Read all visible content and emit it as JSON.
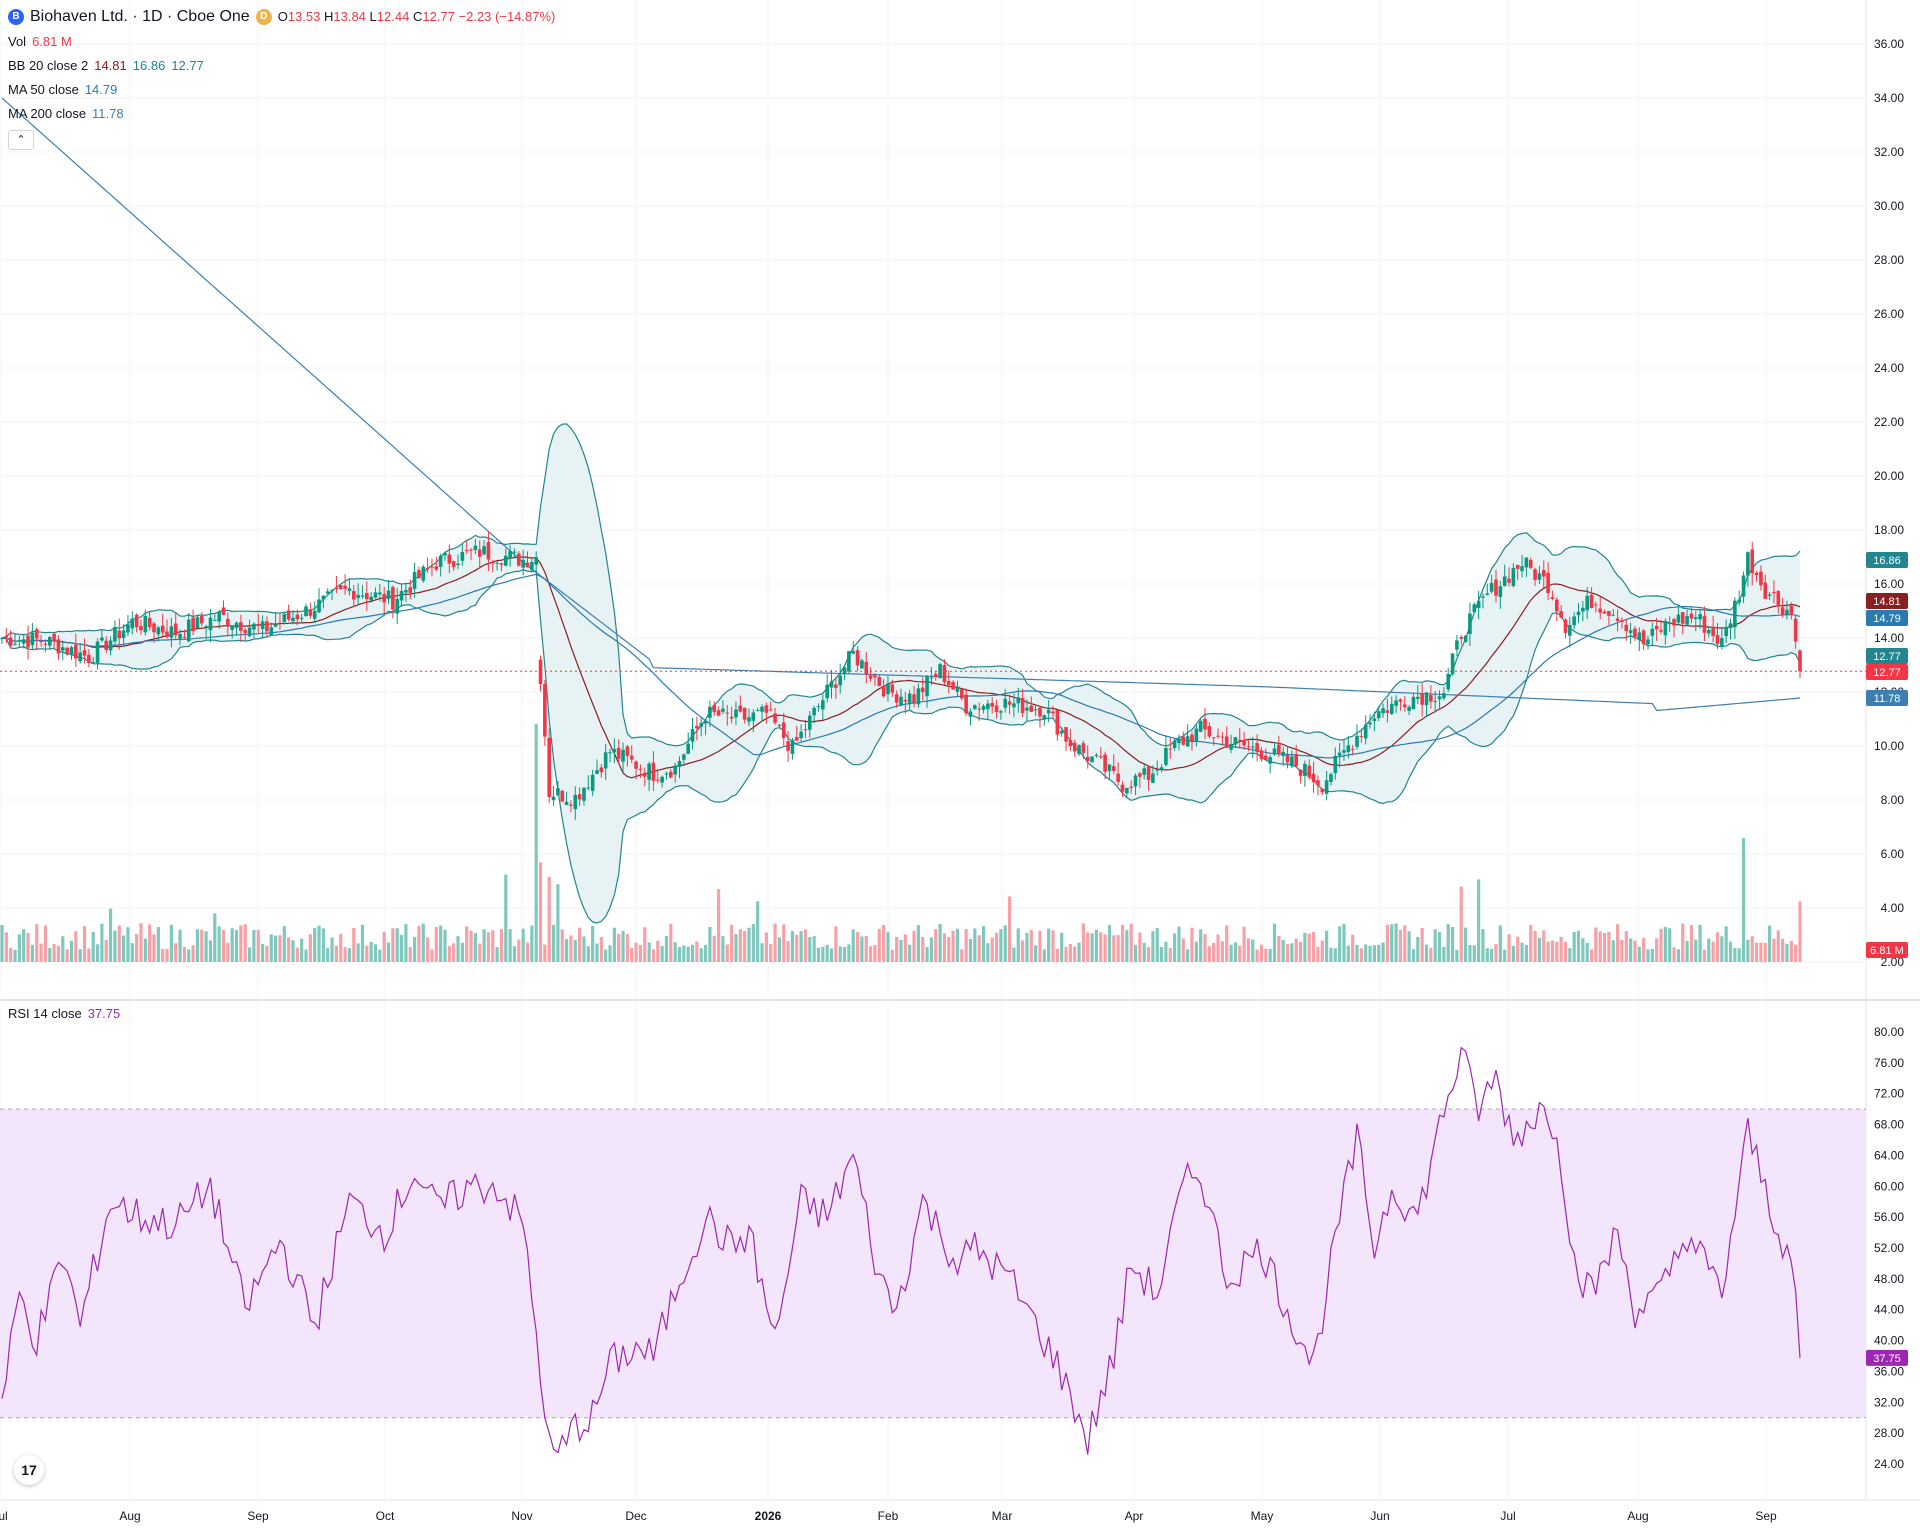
{
  "header": {
    "symbol": "Biohaven Ltd. · 1D · Cboe One",
    "logo_icon": "B",
    "badge_icon": "D",
    "open_label": "O",
    "open": "13.53",
    "high_label": "H",
    "high": "13.84",
    "low_label": "L",
    "low": "12.44",
    "close_label": "C",
    "close": "12.77",
    "change": "−2.23 (−14.87%)"
  },
  "indicators": {
    "vol": {
      "label": "Vol",
      "value": "6.81 M"
    },
    "bb": {
      "label": "BB 20 close 2",
      "basis": "14.81",
      "upper": "16.86",
      "lower": "12.77"
    },
    "ma50": {
      "label": "MA 50 close",
      "value": "14.79"
    },
    "ma200": {
      "label": "MA 200 close",
      "value": "11.78"
    },
    "rsi": {
      "label": "RSI 14 close",
      "value": "37.75"
    },
    "collapse_glyph": "⌃"
  },
  "colors": {
    "up": "#089981",
    "down": "#f23645",
    "up_vol": "#7fc8bd",
    "down_vol": "#f7a1a6",
    "bb": "#22858f",
    "bb_basis": "#8b1e20",
    "bb_fill": "#e6f2f3",
    "ma200": "#3d7fb0",
    "ma50": "#2a7bb0",
    "rsi_line": "#9c27b0",
    "rsi_band": "#f3e5fb",
    "grid": "#f0f3fa"
  },
  "chart_data": {
    "type": "candlestick",
    "title": "Biohaven Ltd. · 1D · Cboe One",
    "price_axis": {
      "min": 0,
      "max": 37,
      "ticks": [
        "2.00",
        "4.00",
        "6.00",
        "8.00",
        "10.00",
        "12.00",
        "14.00",
        "16.00",
        "18.00",
        "20.00",
        "22.00",
        "24.00",
        "26.00",
        "28.00",
        "30.00",
        "32.00",
        "34.00",
        "36.00"
      ]
    },
    "x_axis_labels": [
      "Jul",
      "Aug",
      "Sep",
      "Oct",
      "Nov",
      "Dec",
      "2026",
      "Feb",
      "Mar",
      "Apr",
      "May",
      "Jun",
      "Jul",
      "Aug",
      "Sep"
    ],
    "price_badges": {
      "bb_upper": "16.86",
      "bb_basis": "14.81",
      "ma50": "14.79",
      "bb_lower": "12.77",
      "close": "12.77",
      "ma200": "11.78",
      "volume": "6.81 M"
    },
    "rsi_axis": {
      "min": 22,
      "max": 82,
      "ticks": [
        "24.00",
        "28.00",
        "32.00",
        "36.00",
        "40.00",
        "44.00",
        "48.00",
        "52.00",
        "56.00",
        "60.00",
        "64.00",
        "68.00",
        "72.00",
        "76.00",
        "80.00"
      ],
      "band": [
        30,
        70
      ],
      "last": "37.75"
    },
    "close_anchors": [
      [
        0,
        14.0
      ],
      [
        10,
        13.9
      ],
      [
        20,
        13.3
      ],
      [
        30,
        14.6
      ],
      [
        40,
        14.2
      ],
      [
        50,
        14.8
      ],
      [
        60,
        14.3
      ],
      [
        70,
        15.0
      ],
      [
        80,
        15.8
      ],
      [
        90,
        15.4
      ],
      [
        100,
        16.8
      ],
      [
        110,
        17.2
      ],
      [
        120,
        16.9
      ],
      [
        123,
        17.0
      ],
      [
        124,
        12.6
      ],
      [
        126,
        8.3
      ],
      [
        132,
        8.1
      ],
      [
        140,
        9.8
      ],
      [
        150,
        9.0
      ],
      [
        155,
        9.2
      ],
      [
        162,
        11.2
      ],
      [
        170,
        11.0
      ],
      [
        176,
        11.2
      ],
      [
        182,
        9.9
      ],
      [
        190,
        12.0
      ],
      [
        196,
        13.4
      ],
      [
        204,
        12.0
      ],
      [
        210,
        11.8
      ],
      [
        216,
        12.8
      ],
      [
        222,
        11.5
      ],
      [
        230,
        11.6
      ],
      [
        240,
        11.4
      ],
      [
        246,
        10.1
      ],
      [
        252,
        9.4
      ],
      [
        258,
        8.6
      ],
      [
        264,
        8.9
      ],
      [
        270,
        10.0
      ],
      [
        276,
        10.6
      ],
      [
        282,
        10.2
      ],
      [
        290,
        9.8
      ],
      [
        298,
        9.3
      ],
      [
        304,
        8.6
      ],
      [
        310,
        10.0
      ],
      [
        316,
        11.2
      ],
      [
        324,
        11.8
      ],
      [
        332,
        12.0
      ],
      [
        336,
        14.2
      ],
      [
        342,
        15.6
      ],
      [
        350,
        16.8
      ],
      [
        356,
        16.0
      ],
      [
        360,
        14.5
      ],
      [
        366,
        15.4
      ],
      [
        372,
        14.9
      ],
      [
        378,
        13.8
      ],
      [
        384,
        14.6
      ],
      [
        390,
        14.8
      ],
      [
        396,
        13.8
      ],
      [
        400,
        15.7
      ],
      [
        402,
        17.0
      ],
      [
        406,
        15.8
      ],
      [
        412,
        14.9
      ],
      [
        414,
        12.77
      ]
    ],
    "volume_spikes": [
      [
        25,
        2.2
      ],
      [
        49,
        2.0
      ],
      [
        116,
        3.6
      ],
      [
        123,
        9.8
      ],
      [
        124,
        4.1
      ],
      [
        126,
        3.5
      ],
      [
        128,
        3.2
      ],
      [
        165,
        3.0
      ],
      [
        174,
        2.5
      ],
      [
        232,
        2.7
      ],
      [
        336,
        3.1
      ],
      [
        340,
        3.4
      ],
      [
        401,
        5.1
      ],
      [
        414,
        2.5
      ]
    ],
    "rsi_anchors": [
      [
        0,
        32
      ],
      [
        4,
        46
      ],
      [
        8,
        40
      ],
      [
        14,
        51
      ],
      [
        18,
        42
      ],
      [
        25,
        58
      ],
      [
        32,
        56
      ],
      [
        40,
        55
      ],
      [
        48,
        60
      ],
      [
        56,
        44
      ],
      [
        64,
        53
      ],
      [
        72,
        42
      ],
      [
        80,
        58
      ],
      [
        88,
        54
      ],
      [
        95,
        62
      ],
      [
        100,
        57
      ],
      [
        108,
        60
      ],
      [
        114,
        60
      ],
      [
        120,
        55
      ],
      [
        124,
        36
      ],
      [
        126,
        26
      ],
      [
        128,
        25
      ],
      [
        132,
        29
      ],
      [
        136,
        30
      ],
      [
        140,
        37
      ],
      [
        146,
        39
      ],
      [
        150,
        38
      ],
      [
        156,
        48
      ],
      [
        162,
        56
      ],
      [
        168,
        52
      ],
      [
        172,
        54
      ],
      [
        178,
        40
      ],
      [
        184,
        58
      ],
      [
        190,
        56
      ],
      [
        196,
        64
      ],
      [
        202,
        48
      ],
      [
        206,
        44
      ],
      [
        212,
        58
      ],
      [
        220,
        50
      ],
      [
        224,
        52
      ],
      [
        232,
        48
      ],
      [
        238,
        42
      ],
      [
        242,
        38
      ],
      [
        246,
        33
      ],
      [
        250,
        27
      ],
      [
        256,
        38
      ],
      [
        260,
        50
      ],
      [
        266,
        46
      ],
      [
        272,
        60
      ],
      [
        276,
        62
      ],
      [
        282,
        48
      ],
      [
        290,
        52
      ],
      [
        296,
        44
      ],
      [
        302,
        37
      ],
      [
        308,
        56
      ],
      [
        312,
        66
      ],
      [
        316,
        52
      ],
      [
        320,
        60
      ],
      [
        326,
        56
      ],
      [
        332,
        70
      ],
      [
        336,
        77
      ],
      [
        340,
        70
      ],
      [
        344,
        74
      ],
      [
        348,
        66
      ],
      [
        354,
        70
      ],
      [
        358,
        68
      ],
      [
        362,
        50
      ],
      [
        366,
        46
      ],
      [
        372,
        54
      ],
      [
        376,
        44
      ],
      [
        382,
        46
      ],
      [
        388,
        54
      ],
      [
        396,
        46
      ],
      [
        402,
        67
      ],
      [
        408,
        56
      ],
      [
        412,
        50
      ],
      [
        414,
        37.75
      ]
    ]
  }
}
